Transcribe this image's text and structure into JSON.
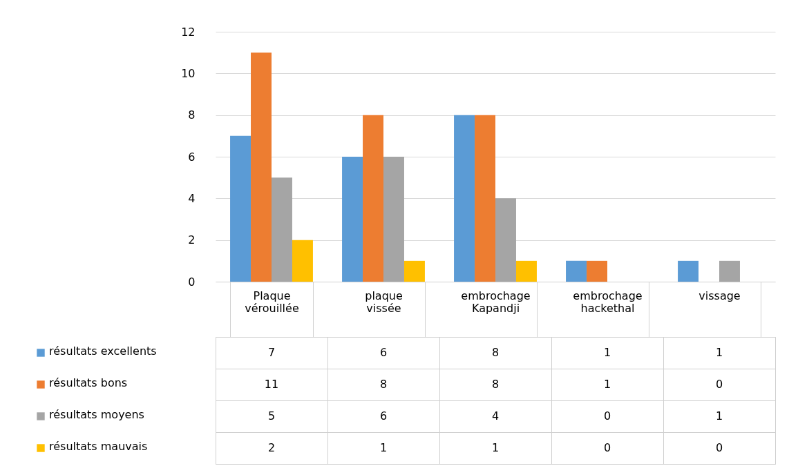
{
  "chart_data": {
    "type": "bar",
    "categories": [
      "Plaque vérouillée",
      "plaque vissée",
      "embrochage Kapandji",
      "embrochage hackethal",
      "vissage"
    ],
    "series": [
      {
        "name": "résultats excellents",
        "color": "#5b9bd5",
        "values": [
          7,
          6,
          8,
          1,
          1
        ]
      },
      {
        "name": "résultats bons",
        "color": "#ed7d31",
        "values": [
          11,
          8,
          8,
          1,
          0
        ]
      },
      {
        "name": "résultats moyens",
        "color": "#a5a5a5",
        "values": [
          5,
          6,
          4,
          0,
          1
        ]
      },
      {
        "name": "résultats mauvais",
        "color": "#ffc000",
        "values": [
          2,
          1,
          1,
          0,
          0
        ]
      }
    ],
    "ylim": [
      0,
      12
    ],
    "yticks": [
      0,
      2,
      4,
      6,
      8,
      10,
      12
    ],
    "grid": "y",
    "legend": "bottom left",
    "data_labels": true
  }
}
